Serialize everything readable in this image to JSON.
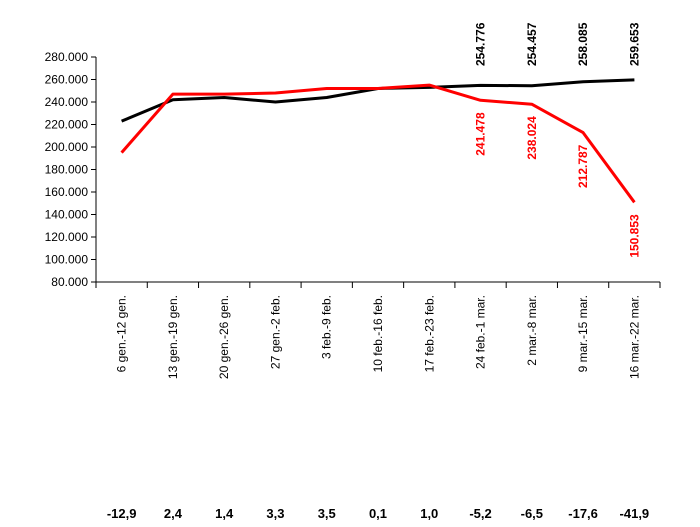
{
  "chart_data": {
    "type": "line",
    "ylim": [
      80000,
      280000
    ],
    "y_ticks": [
      "80.000",
      "100.000",
      "120.000",
      "140.000",
      "160.000",
      "180.000",
      "200.000",
      "220.000",
      "240.000",
      "260.000",
      "280.000"
    ],
    "y_tick_values": [
      80000,
      100000,
      120000,
      140000,
      160000,
      180000,
      200000,
      220000,
      240000,
      260000,
      280000
    ],
    "grid": false,
    "categories": [
      "6 gen.-12 gen.",
      "13 gen.-19 gen.",
      "20 gen.-26 gen.",
      "27 gen.-2 feb.",
      "3 feb.-9 feb.",
      "10 feb.-16 feb.",
      "17 feb.-23 feb.",
      "24 feb.-1 mar.",
      "2 mar.-8 mar.",
      "9 mar.-15 mar.",
      "16 mar.-22 mar."
    ],
    "series": [
      {
        "color": "#000000",
        "values": [
          223000,
          242000,
          244000,
          240000,
          244000,
          252000,
          253000,
          254776,
          254457,
          258085,
          259653
        ],
        "labels": [
          "",
          "",
          "",
          "",
          "",
          "",
          "",
          "254.776",
          "254.457",
          "258.085",
          "259.653"
        ]
      },
      {
        "color": "#ff0000",
        "values": [
          195000,
          247000,
          247000,
          248000,
          252000,
          252000,
          255000,
          241478,
          238024,
          212787,
          150853
        ],
        "labels": [
          "",
          "",
          "",
          "",
          "",
          "",
          "",
          "241.478",
          "238.024",
          "212.787",
          "150.853"
        ]
      }
    ],
    "percent_changes": [
      "-12,9",
      "2,4",
      "1,4",
      "3,3",
      "3,5",
      "0,1",
      "1,0",
      "-5,2",
      "-6,5",
      "-17,6",
      "-41,9"
    ]
  }
}
